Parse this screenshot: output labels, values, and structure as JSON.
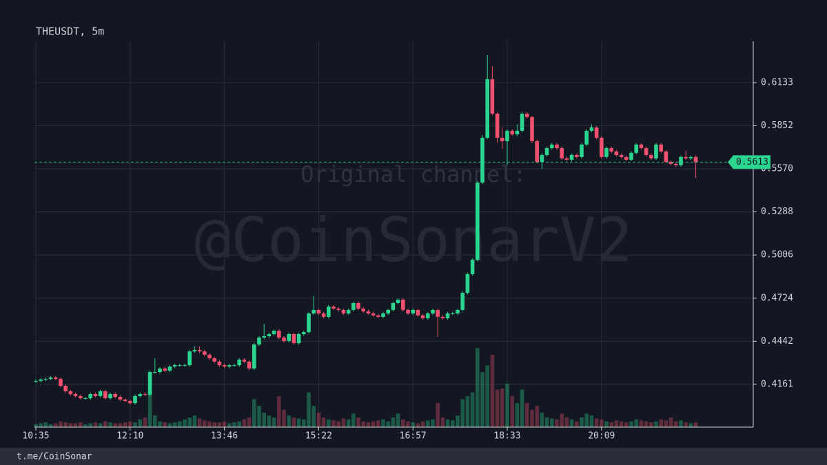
{
  "chart_data": {
    "type": "candlestick",
    "title": "THEUSDT, 5m",
    "categories": [
      "10:35",
      null,
      null,
      null,
      null,
      null,
      null,
      null,
      null,
      null,
      null,
      null,
      null,
      null,
      null,
      null,
      null,
      null,
      null,
      "12:10",
      null,
      null,
      null,
      null,
      null,
      null,
      null,
      null,
      null,
      null,
      null,
      null,
      null,
      null,
      null,
      null,
      null,
      null,
      "13:46",
      null,
      null,
      null,
      null,
      null,
      null,
      null,
      null,
      null,
      null,
      null,
      null,
      null,
      null,
      null,
      null,
      null,
      null,
      "15:22",
      null,
      null,
      null,
      null,
      null,
      null,
      null,
      null,
      null,
      null,
      null,
      null,
      null,
      null,
      null,
      null,
      null,
      null,
      "16:57",
      null,
      null,
      null,
      null,
      null,
      null,
      null,
      null,
      null,
      null,
      null,
      null,
      null,
      null,
      null,
      null,
      null,
      null,
      "18:33",
      null,
      null,
      null,
      null,
      null,
      null,
      null,
      null,
      null,
      null,
      null,
      null,
      null,
      null,
      null,
      null,
      null,
      null,
      "20:09",
      null,
      null,
      null,
      null,
      null,
      null,
      null,
      null,
      null,
      null,
      null,
      null,
      null,
      null,
      null,
      null,
      null,
      null,
      null
    ],
    "open": [
      0.418,
      0.4183,
      0.4192,
      0.4196,
      0.4205,
      0.4196,
      0.4151,
      0.4115,
      0.4097,
      0.4084,
      0.407,
      0.407,
      0.4097,
      0.4084,
      0.4115,
      0.407,
      0.4097,
      0.4079,
      0.4061,
      0.4052,
      0.4038,
      0.4084,
      0.4097,
      0.4093,
      0.4241,
      0.4241,
      0.4264,
      0.425,
      0.4277,
      0.4286,
      0.4286,
      0.4286,
      0.4376,
      0.4385,
      0.4376,
      0.4354,
      0.4331,
      0.4309,
      0.4286,
      0.4277,
      0.4286,
      0.4286,
      0.4322,
      0.4309,
      0.4264,
      0.4421,
      0.4466,
      0.4475,
      0.4489,
      0.4511,
      0.4466,
      0.4444,
      0.4489,
      0.443,
      0.4489,
      0.4502,
      0.4624,
      0.4647,
      0.4624,
      0.4602,
      0.4669,
      0.4656,
      0.4647,
      0.4624,
      0.4647,
      0.4692,
      0.4656,
      0.4638,
      0.4624,
      0.4611,
      0.4602,
      0.4624,
      0.4647,
      0.4692,
      0.4714,
      0.4647,
      0.4624,
      0.4647,
      0.4611,
      0.4593,
      0.4624,
      0.4647,
      0.4602,
      0.4593,
      0.4624,
      0.4624,
      0.4647,
      0.4759,
      0.4881,
      0.4975,
      0.548,
      0.5773,
      0.6156,
      0.593,
      0.5773,
      0.575,
      0.5818,
      0.5795,
      0.5818,
      0.593,
      0.5908,
      0.575,
      0.5615,
      0.566,
      0.5705,
      0.5728,
      0.5705,
      0.5638,
      0.5629,
      0.566,
      0.5647,
      0.5728,
      0.5818,
      0.584,
      0.5773,
      0.5647,
      0.5705,
      0.5683,
      0.566,
      0.5647,
      0.5629,
      0.5674,
      0.5728,
      0.5705,
      0.566,
      0.5638,
      0.5728,
      0.5683,
      0.5615,
      0.5602,
      0.5593,
      0.5647,
      0.5638,
      0.5647
    ],
    "high": [
      0.4193,
      0.4202,
      0.4206,
      0.4215,
      0.4215,
      0.4206,
      0.4161,
      0.4125,
      0.4107,
      0.4094,
      0.408,
      0.4107,
      0.4107,
      0.4125,
      0.4125,
      0.4107,
      0.4107,
      0.4089,
      0.4071,
      0.4062,
      0.4094,
      0.4107,
      0.4107,
      0.4251,
      0.433,
      0.4274,
      0.4274,
      0.4287,
      0.4296,
      0.4296,
      0.4296,
      0.4386,
      0.441,
      0.441,
      0.4386,
      0.4364,
      0.4341,
      0.4319,
      0.4296,
      0.4296,
      0.4296,
      0.4332,
      0.4332,
      0.4319,
      0.4431,
      0.4476,
      0.4556,
      0.4499,
      0.4521,
      0.4521,
      0.4476,
      0.4499,
      0.4499,
      0.4499,
      0.4512,
      0.4634,
      0.474,
      0.4657,
      0.4634,
      0.4679,
      0.4679,
      0.4666,
      0.4657,
      0.4657,
      0.4702,
      0.4702,
      0.4666,
      0.4648,
      0.4634,
      0.4621,
      0.4634,
      0.4657,
      0.4702,
      0.4724,
      0.4724,
      0.4657,
      0.4657,
      0.4657,
      0.4621,
      0.4634,
      0.4657,
      0.4657,
      0.4612,
      0.4634,
      0.4634,
      0.4657,
      0.4769,
      0.4891,
      0.4985,
      0.549,
      0.579,
      0.6313,
      0.624,
      0.594,
      0.584,
      0.5828,
      0.5828,
      0.586,
      0.594,
      0.594,
      0.5918,
      0.576,
      0.567,
      0.5715,
      0.5738,
      0.5738,
      0.5715,
      0.5648,
      0.567,
      0.567,
      0.5738,
      0.5828,
      0.586,
      0.585,
      0.5783,
      0.5715,
      0.5715,
      0.5693,
      0.567,
      0.5657,
      0.5684,
      0.5738,
      0.5738,
      0.5715,
      0.567,
      0.5738,
      0.5738,
      0.5693,
      0.5625,
      0.5612,
      0.5657,
      0.569,
      0.5657,
      0.5657
    ],
    "low": [
      0.417,
      0.4173,
      0.4182,
      0.4186,
      0.4186,
      0.4141,
      0.4105,
      0.4087,
      0.4074,
      0.406,
      0.406,
      0.406,
      0.4074,
      0.4074,
      0.406,
      0.406,
      0.4069,
      0.4051,
      0.4042,
      0.4028,
      0.4028,
      0.4074,
      0.4083,
      0.4083,
      0.4231,
      0.4231,
      0.424,
      0.424,
      0.4267,
      0.4276,
      0.4276,
      0.4276,
      0.4366,
      0.4366,
      0.4344,
      0.4321,
      0.4299,
      0.4276,
      0.4267,
      0.4267,
      0.4276,
      0.4276,
      0.4299,
      0.4254,
      0.4254,
      0.4411,
      0.4456,
      0.4465,
      0.4479,
      0.4456,
      0.4434,
      0.4434,
      0.442,
      0.442,
      0.4479,
      0.4492,
      0.4614,
      0.4614,
      0.4592,
      0.4592,
      0.4646,
      0.4637,
      0.4614,
      0.4614,
      0.4637,
      0.4646,
      0.4628,
      0.4614,
      0.4601,
      0.4592,
      0.4592,
      0.4614,
      0.4637,
      0.4682,
      0.4637,
      0.4614,
      0.4614,
      0.4601,
      0.4583,
      0.4583,
      0.4614,
      0.447,
      0.4583,
      0.4583,
      0.4614,
      0.4614,
      0.4637,
      0.4749,
      0.4871,
      0.4965,
      0.547,
      0.5763,
      0.592,
      0.574,
      0.57,
      0.5593,
      0.5785,
      0.5785,
      0.5808,
      0.5898,
      0.574,
      0.5605,
      0.557,
      0.565,
      0.5695,
      0.5695,
      0.5628,
      0.5619,
      0.5619,
      0.5637,
      0.5637,
      0.5718,
      0.5808,
      0.5763,
      0.5637,
      0.5637,
      0.5673,
      0.565,
      0.5637,
      0.5619,
      0.5619,
      0.5664,
      0.5695,
      0.565,
      0.5628,
      0.5628,
      0.5673,
      0.5605,
      0.5592,
      0.5583,
      0.5583,
      0.5628,
      0.5628,
      0.5511
    ],
    "close": [
      0.4183,
      0.4192,
      0.4196,
      0.4205,
      0.4196,
      0.4151,
      0.4115,
      0.4097,
      0.4084,
      0.407,
      0.407,
      0.4097,
      0.4084,
      0.4115,
      0.407,
      0.4097,
      0.4079,
      0.4061,
      0.4052,
      0.4038,
      0.4084,
      0.4097,
      0.4093,
      0.4241,
      0.4241,
      0.4264,
      0.425,
      0.4277,
      0.4286,
      0.4286,
      0.4286,
      0.4376,
      0.4385,
      0.4376,
      0.4354,
      0.4331,
      0.4309,
      0.4286,
      0.4277,
      0.4286,
      0.4286,
      0.4322,
      0.4309,
      0.4264,
      0.4421,
      0.4466,
      0.4475,
      0.4489,
      0.4511,
      0.4466,
      0.4444,
      0.4489,
      0.443,
      0.4489,
      0.4502,
      0.4624,
      0.4647,
      0.4624,
      0.4602,
      0.4669,
      0.4656,
      0.4647,
      0.4624,
      0.4647,
      0.4692,
      0.4656,
      0.4638,
      0.4624,
      0.4611,
      0.4602,
      0.4624,
      0.4647,
      0.4692,
      0.4714,
      0.4647,
      0.4624,
      0.4647,
      0.4611,
      0.4593,
      0.4624,
      0.4647,
      0.4602,
      0.4593,
      0.4624,
      0.4624,
      0.4647,
      0.4759,
      0.4881,
      0.4975,
      0.548,
      0.5773,
      0.6156,
      0.593,
      0.5773,
      0.575,
      0.5818,
      0.5795,
      0.5818,
      0.593,
      0.5908,
      0.575,
      0.5615,
      0.566,
      0.5705,
      0.5728,
      0.5705,
      0.5638,
      0.5629,
      0.566,
      0.5647,
      0.5728,
      0.5818,
      0.584,
      0.5773,
      0.5647,
      0.5705,
      0.5683,
      0.566,
      0.5647,
      0.5629,
      0.5674,
      0.5728,
      0.5705,
      0.566,
      0.5638,
      0.5728,
      0.5683,
      0.5615,
      0.5602,
      0.5593,
      0.5647,
      0.5638,
      0.5647,
      0.5613
    ],
    "volume": [
      3,
      4,
      5,
      3,
      4,
      6,
      5,
      4,
      4,
      5,
      3,
      4,
      5,
      4,
      6,
      5,
      4,
      4,
      5,
      6,
      5,
      8,
      10,
      36,
      12,
      6,
      5,
      4,
      5,
      6,
      8,
      10,
      12,
      9,
      7,
      6,
      5,
      5,
      6,
      4,
      5,
      6,
      8,
      10,
      29,
      22,
      15,
      12,
      10,
      32,
      18,
      12,
      10,
      9,
      8,
      36,
      22,
      15,
      10,
      8,
      7,
      6,
      9,
      8,
      14,
      10,
      6,
      5,
      6,
      7,
      8,
      6,
      10,
      14,
      8,
      6,
      5,
      4,
      6,
      7,
      8,
      25,
      10,
      8,
      7,
      12,
      29,
      32,
      36,
      82,
      57,
      64,
      75,
      39,
      40,
      45,
      32,
      25,
      39,
      25,
      18,
      22,
      15,
      10,
      9,
      8,
      14,
      10,
      8,
      6,
      10,
      14,
      12,
      9,
      8,
      6,
      5,
      7,
      6,
      5,
      6,
      8,
      7,
      6,
      5,
      6,
      8,
      7,
      10,
      6,
      7,
      5,
      4,
      5
    ],
    "volume_lim": [
      0,
      100
    ],
    "ylim": [
      0.3881,
      0.6403
    ],
    "yticks": [
      0.4161,
      0.4442,
      0.4724,
      0.5006,
      0.5288,
      {
        "value": 0.557,
        "label": "0.5570"
      },
      0.5852,
      0.6133
    ],
    "up_color": "#2bd48f",
    "down_color": "#f0506e",
    "last_price": 0.5613,
    "grid": true
  },
  "watermark": {
    "line1": "Original channel:",
    "line2": "@CoinSonarV2"
  },
  "footer": "t.me/CoinSonar"
}
